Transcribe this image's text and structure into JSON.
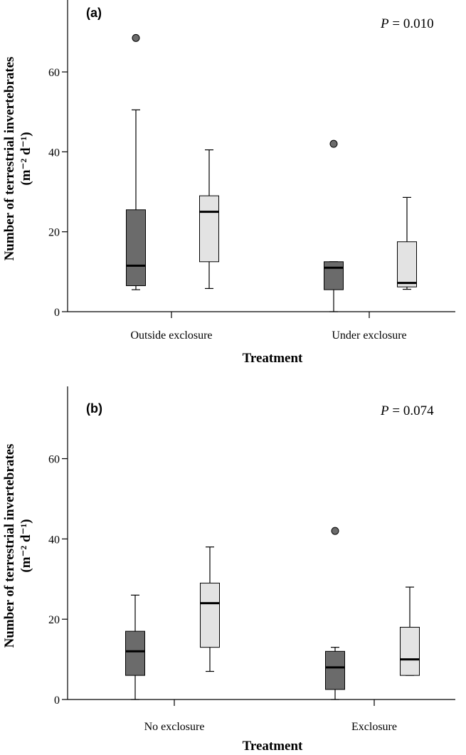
{
  "colors": {
    "dark_box": "#6b6b6b",
    "light_box": "#e3e3e3",
    "ink": "#000000"
  },
  "chart_data": [
    {
      "type": "boxplot",
      "panel_label": "(a)",
      "annotation_label": "P",
      "annotation_value": " = 0.010",
      "xlabel": "Treatment",
      "ylabel_line1": "Number of terrestrial invertebrates",
      "ylabel_line2": "(m⁻² d⁻¹)",
      "ylim": [
        0,
        78
      ],
      "yticks": [
        0,
        20,
        40,
        60
      ],
      "grid": false,
      "categories": [
        "Outside exclosure",
        "Under exclosure"
      ],
      "series": [
        {
          "color": "dark",
          "boxes": [
            {
              "whisker_low": 5.5,
              "q1": 6.5,
              "median": 11.5,
              "q3": 25.5,
              "whisker_high": 50.5,
              "outliers": [
                68.5
              ]
            },
            {
              "whisker_low": 0,
              "q1": 5.5,
              "median": 11,
              "q3": 12.5,
              "whisker_high": 12.5,
              "outliers": [
                42
              ]
            }
          ]
        },
        {
          "color": "light",
          "boxes": [
            {
              "whisker_low": 5.8,
              "q1": 12.5,
              "median": 25,
              "q3": 29,
              "whisker_high": 40.5,
              "outliers": []
            },
            {
              "whisker_low": 5.6,
              "q1": 6.2,
              "median": 7.2,
              "q3": 17.5,
              "whisker_high": 28.6,
              "outliers": []
            }
          ]
        }
      ]
    },
    {
      "type": "boxplot",
      "panel_label": "(b)",
      "annotation_label": "P",
      "annotation_value": " = 0.074",
      "xlabel": "Treatment",
      "ylabel_line1": "Number of terrestrial invertebrates",
      "ylabel_line2": "(m⁻² d⁻¹)",
      "ylim": [
        0,
        78
      ],
      "yticks": [
        0,
        20,
        40,
        60
      ],
      "grid": false,
      "categories": [
        "No exclosure",
        "Exclosure"
      ],
      "series": [
        {
          "color": "dark",
          "boxes": [
            {
              "whisker_low": 0,
              "q1": 6,
              "median": 12,
              "q3": 17,
              "whisker_high": 26,
              "outliers": []
            },
            {
              "whisker_low": 0,
              "q1": 2.5,
              "median": 8,
              "q3": 12,
              "whisker_high": 13,
              "outliers": [
                42
              ]
            }
          ]
        },
        {
          "color": "light",
          "boxes": [
            {
              "whisker_low": 7,
              "q1": 13,
              "median": 24,
              "q3": 29,
              "whisker_high": 38,
              "outliers": []
            },
            {
              "whisker_low": 6,
              "q1": 6,
              "median": 10,
              "q3": 18,
              "whisker_high": 28,
              "outliers": []
            }
          ]
        }
      ]
    }
  ]
}
